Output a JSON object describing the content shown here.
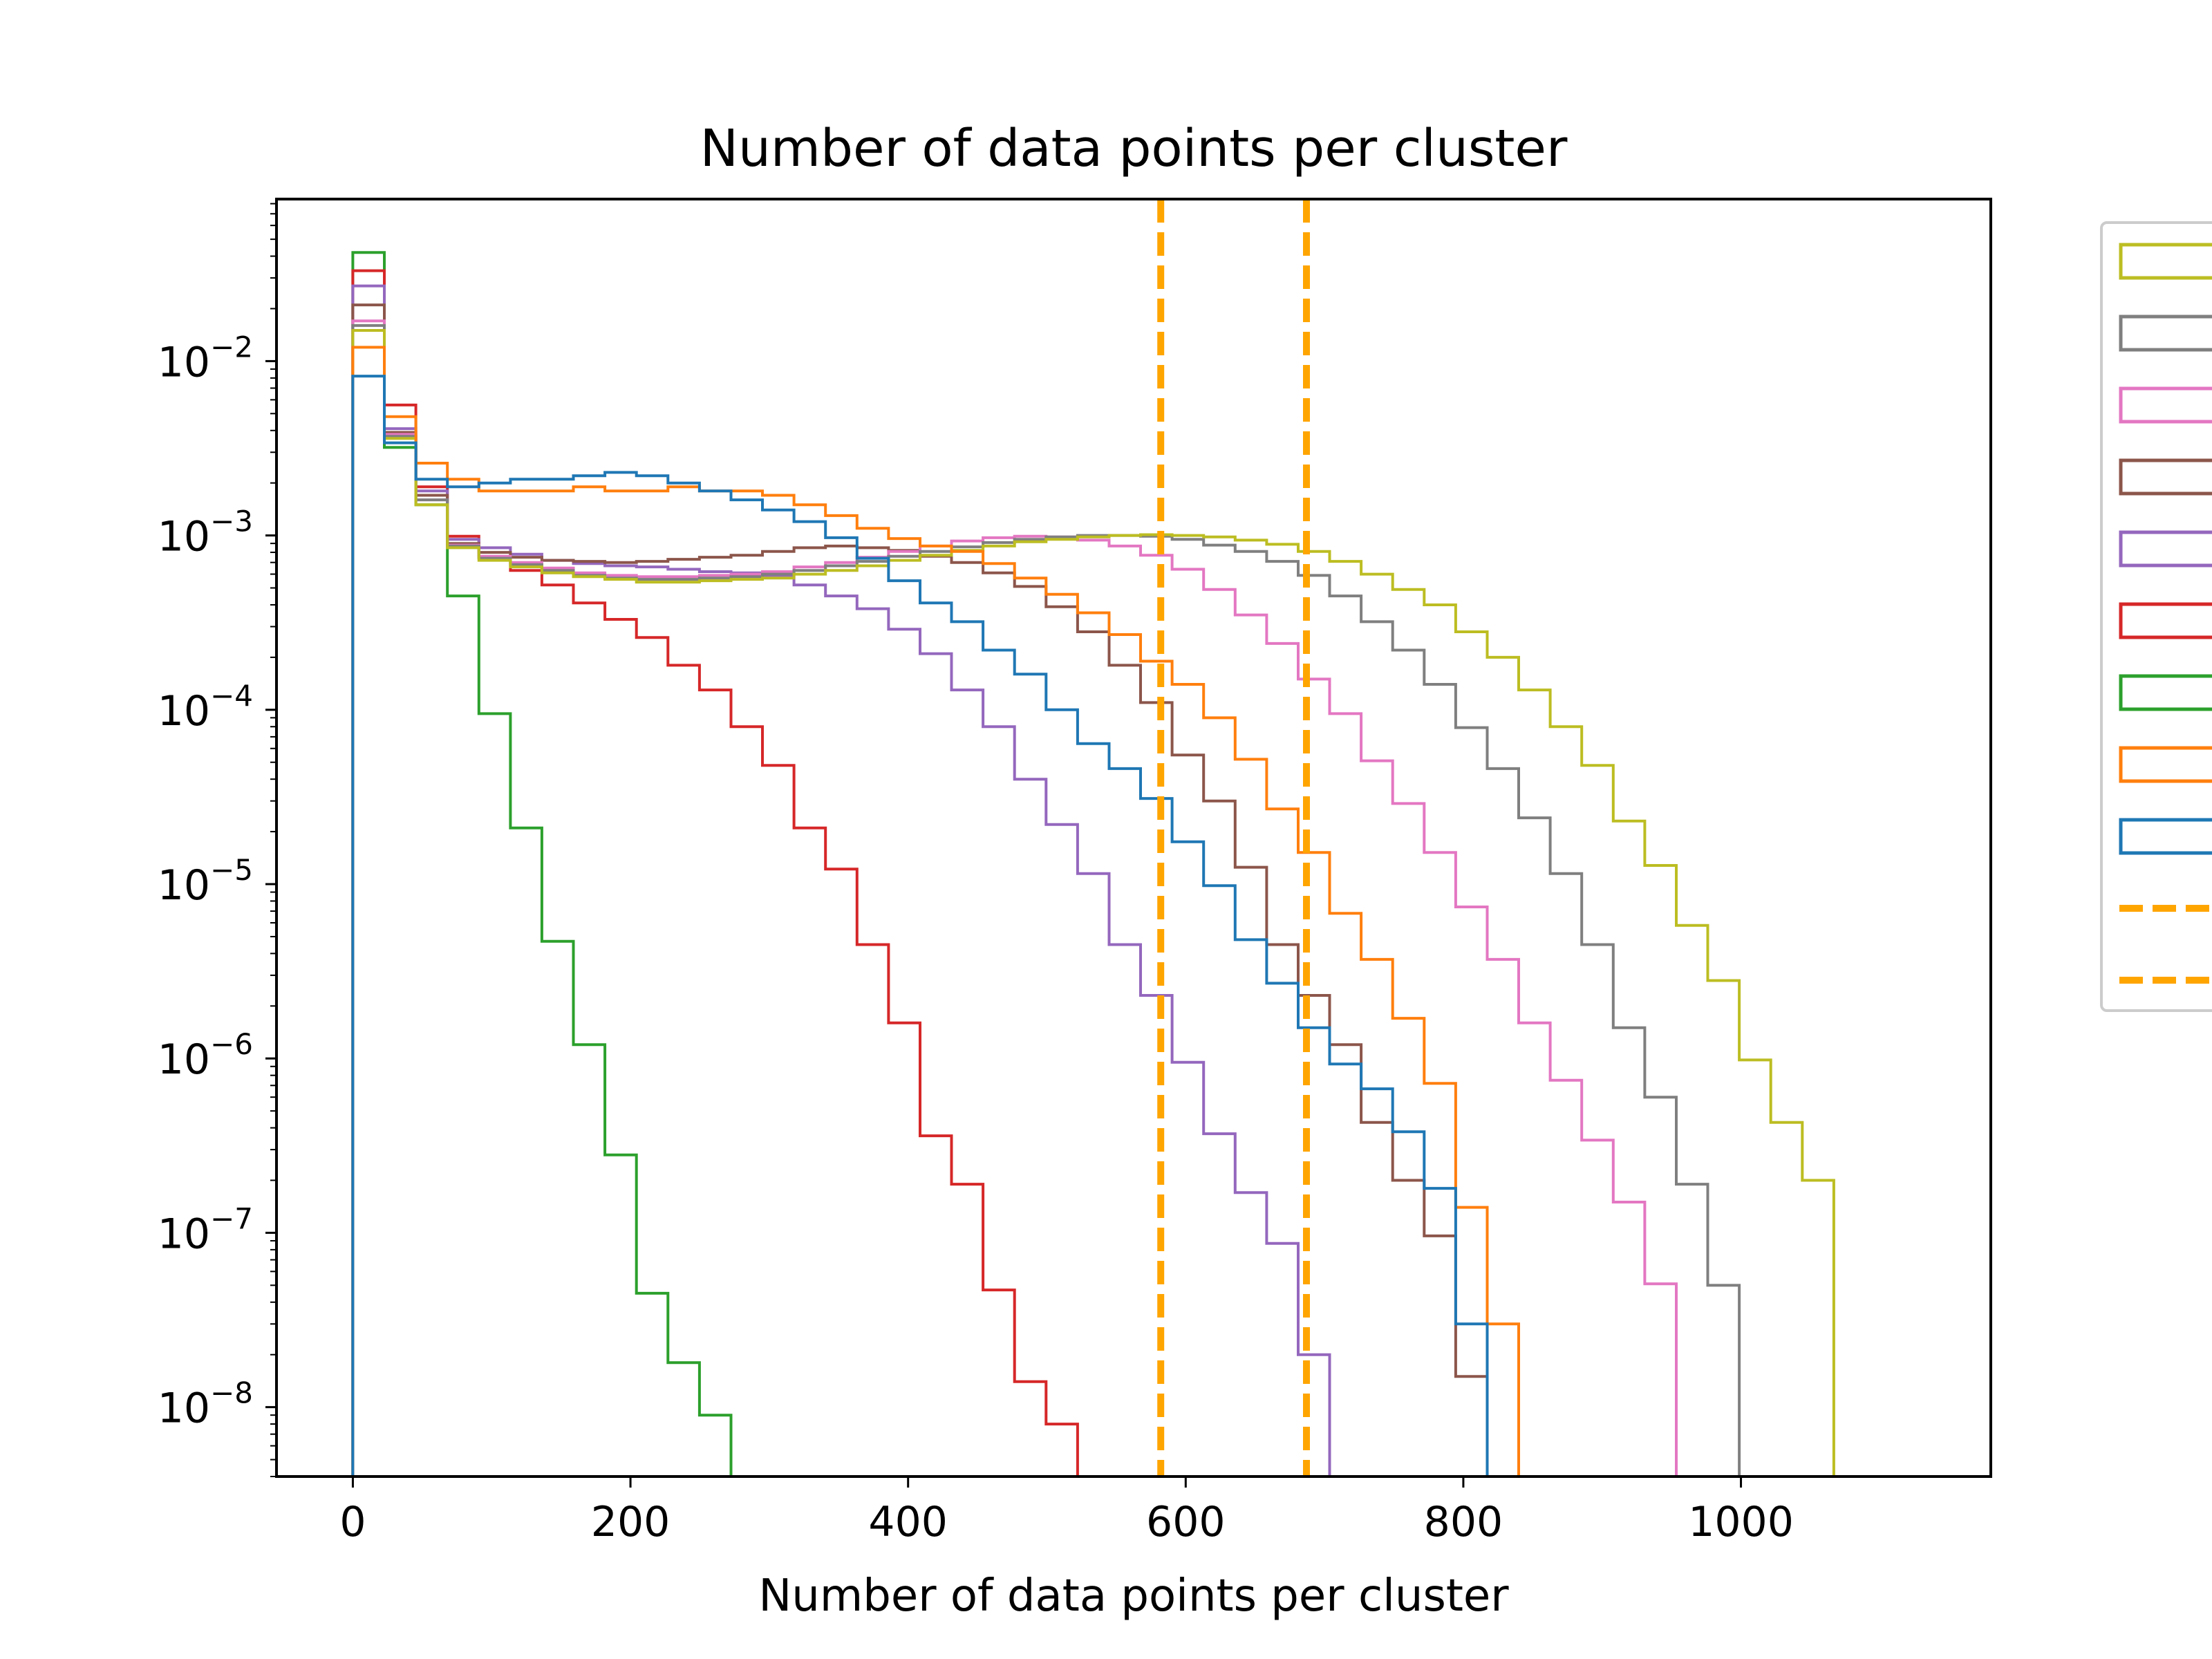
{
  "chart_data": {
    "type": "step-histogram",
    "title": "Number of data points per cluster",
    "xlabel": "Number of data points per cluster",
    "ylabel": "",
    "xlim": [
      -55,
      1180
    ],
    "ylim": [
      4e-09,
      0.085
    ],
    "yscale": "log",
    "grid": false,
    "x_ticks": [
      {
        "value": 0,
        "label": "0"
      },
      {
        "value": 200,
        "label": "200"
      },
      {
        "value": 400,
        "label": "400"
      },
      {
        "value": 600,
        "label": "600"
      },
      {
        "value": 800,
        "label": "800"
      },
      {
        "value": 1000,
        "label": "1000"
      }
    ],
    "y_ticks": [
      {
        "value": 0.01,
        "base": "10",
        "exponent": "−2"
      },
      {
        "value": 0.001,
        "base": "10",
        "exponent": "−3"
      },
      {
        "value": 0.0001,
        "base": "10",
        "exponent": "−4"
      },
      {
        "value": 1e-05,
        "base": "10",
        "exponent": "−5"
      },
      {
        "value": 1e-06,
        "base": "10",
        "exponent": "−6"
      },
      {
        "value": 1e-07,
        "base": "10",
        "exponent": "−7"
      },
      {
        "value": 1e-08,
        "base": "10",
        "exponent": "−8"
      }
    ],
    "legend": {
      "placement": "outside-right",
      "entries": [
        {
          "color": "#bcbd22",
          "style": "step"
        },
        {
          "color": "#7f7f7f",
          "style": "step"
        },
        {
          "color": "#e377c2",
          "style": "step"
        },
        {
          "color": "#8c564b",
          "style": "step"
        },
        {
          "color": "#9467bd",
          "style": "step"
        },
        {
          "color": "#d62728",
          "style": "step"
        },
        {
          "color": "#2ca02c",
          "style": "step"
        },
        {
          "color": "#ff7f0e",
          "style": "step"
        },
        {
          "color": "#1f77b4",
          "style": "step"
        },
        {
          "color": "#ffa500",
          "style": "dashed"
        },
        {
          "color": "#ffa500",
          "style": "dashed"
        }
      ]
    },
    "vlines": [
      {
        "x": 582,
        "color": "#ffa500",
        "style": "dashed"
      },
      {
        "x": 687,
        "color": "#ffa500",
        "style": "dashed"
      }
    ],
    "series": [
      {
        "color": "#2ca02c",
        "bin_start": 0,
        "bin_width": 22.7,
        "values": [
          0.042,
          0.0032,
          0.0015,
          0.00045,
          9.5e-05,
          2.1e-05,
          4.7e-06,
          1.2e-06,
          2.8e-07,
          4.5e-08,
          1.8e-08,
          9e-09
        ]
      },
      {
        "color": "#d62728",
        "bin_start": 0,
        "bin_width": 22.7,
        "values": [
          0.033,
          0.0056,
          0.0019,
          0.00099,
          0.00075,
          0.00063,
          0.00052,
          0.00041,
          0.00033,
          0.00026,
          0.00018,
          0.00013,
          8e-05,
          4.8e-05,
          2.1e-05,
          1.22e-05,
          4.5e-06,
          1.6e-06,
          3.6e-07,
          1.9e-07,
          4.7e-08,
          1.4e-08,
          8e-09
        ]
      },
      {
        "color": "#9467bd",
        "bin_start": 0,
        "bin_width": 22.7,
        "values": [
          0.027,
          0.0041,
          0.0018,
          0.00095,
          0.00085,
          0.00078,
          0.00072,
          0.00069,
          0.00067,
          0.00066,
          0.00064,
          0.00062,
          0.00061,
          0.00058,
          0.00052,
          0.00045,
          0.00038,
          0.00029,
          0.00021,
          0.00013,
          8e-05,
          4e-05,
          2.2e-05,
          1.15e-05,
          4.5e-06,
          2.3e-06,
          9.5e-07,
          3.7e-07,
          1.7e-07,
          8.7e-08,
          2e-08
        ]
      },
      {
        "color": "#8c564b",
        "bin_start": 0,
        "bin_width": 22.7,
        "values": [
          0.021,
          0.0039,
          0.0017,
          0.0009,
          0.0008,
          0.00075,
          0.00072,
          0.00071,
          0.0007,
          0.00071,
          0.00073,
          0.00075,
          0.00077,
          0.00081,
          0.00085,
          0.00087,
          0.00085,
          0.00082,
          0.00076,
          0.0007,
          0.00061,
          0.00051,
          0.00039,
          0.00028,
          0.00018,
          0.00011,
          5.5e-05,
          3e-05,
          1.25e-05,
          4.5e-06,
          2.3e-06,
          1.2e-06,
          4.3e-07,
          2e-07,
          9.6e-08,
          1.5e-08
        ]
      },
      {
        "color": "#e377c2",
        "bin_start": 0,
        "bin_width": 22.7,
        "values": [
          0.017,
          0.0038,
          0.0016,
          0.00088,
          0.00076,
          0.0007,
          0.00065,
          0.00061,
          0.00059,
          0.00058,
          0.00058,
          0.00059,
          0.0006,
          0.00062,
          0.00066,
          0.0007,
          0.00075,
          0.00081,
          0.00087,
          0.00093,
          0.00097,
          0.00099,
          0.00098,
          0.00094,
          0.00087,
          0.00077,
          0.00064,
          0.00049,
          0.00035,
          0.00024,
          0.00015,
          9.5e-05,
          5.1e-05,
          2.9e-05,
          1.52e-05,
          7.4e-06,
          3.7e-06,
          1.6e-06,
          7.5e-07,
          3.4e-07,
          1.5e-07,
          5.1e-08
        ]
      },
      {
        "color": "#7f7f7f",
        "bin_start": 0,
        "bin_width": 22.7,
        "values": [
          0.016,
          0.0037,
          0.0016,
          0.00087,
          0.00074,
          0.00068,
          0.00063,
          0.00059,
          0.00057,
          0.00056,
          0.00056,
          0.00057,
          0.00058,
          0.0006,
          0.00063,
          0.00067,
          0.00071,
          0.00076,
          0.00081,
          0.00086,
          0.00091,
          0.00095,
          0.00098,
          0.001,
          0.001,
          0.00099,
          0.00095,
          0.00088,
          0.00081,
          0.00071,
          0.00059,
          0.00045,
          0.00032,
          0.00022,
          0.00014,
          7.9e-05,
          4.6e-05,
          2.4e-05,
          1.15e-05,
          4.5e-06,
          1.5e-06,
          6e-07,
          1.9e-07,
          5e-08
        ]
      },
      {
        "color": "#bcbd22",
        "bin_start": 0,
        "bin_width": 22.7,
        "values": [
          0.015,
          0.0036,
          0.0015,
          0.00085,
          0.00072,
          0.00066,
          0.00061,
          0.00058,
          0.00056,
          0.00054,
          0.00054,
          0.00055,
          0.00056,
          0.00057,
          0.0006,
          0.00063,
          0.00067,
          0.00072,
          0.00077,
          0.00082,
          0.00087,
          0.00092,
          0.00095,
          0.00098,
          0.001,
          0.00101,
          0.001,
          0.00098,
          0.00094,
          0.00089,
          0.00081,
          0.00071,
          0.0006,
          0.00049,
          0.0004,
          0.00028,
          0.0002,
          0.00013,
          8e-05,
          4.8e-05,
          2.3e-05,
          1.28e-05,
          5.8e-06,
          2.8e-06,
          9.8e-07,
          4.3e-07,
          2e-07
        ]
      },
      {
        "color": "#ff7f0e",
        "bin_start": 0,
        "bin_width": 22.7,
        "values": [
          0.012,
          0.0048,
          0.0026,
          0.0021,
          0.0018,
          0.0018,
          0.0018,
          0.0019,
          0.0018,
          0.0018,
          0.0019,
          0.0018,
          0.0018,
          0.0017,
          0.0015,
          0.0013,
          0.0011,
          0.00096,
          0.00087,
          0.00081,
          0.00069,
          0.00057,
          0.00046,
          0.00036,
          0.00027,
          0.00019,
          0.00014,
          9e-05,
          5.2e-05,
          2.7e-05,
          1.52e-05,
          6.8e-06,
          3.7e-06,
          1.7e-06,
          7.2e-07,
          1.4e-07,
          3e-08
        ]
      },
      {
        "color": "#1f77b4",
        "bin_start": 0,
        "bin_width": 22.7,
        "values": [
          0.0082,
          0.0034,
          0.0021,
          0.0019,
          0.002,
          0.0021,
          0.0021,
          0.0022,
          0.0023,
          0.0022,
          0.002,
          0.0018,
          0.0016,
          0.0014,
          0.0012,
          0.00097,
          0.00074,
          0.00055,
          0.00041,
          0.00032,
          0.00022,
          0.00016,
          0.0001,
          6.4e-05,
          4.6e-05,
          3.1e-05,
          1.75e-05,
          9.8e-06,
          4.8e-06,
          2.7e-06,
          1.5e-06,
          9.3e-07,
          6.7e-07,
          3.8e-07,
          1.8e-07,
          3e-08
        ]
      }
    ]
  }
}
